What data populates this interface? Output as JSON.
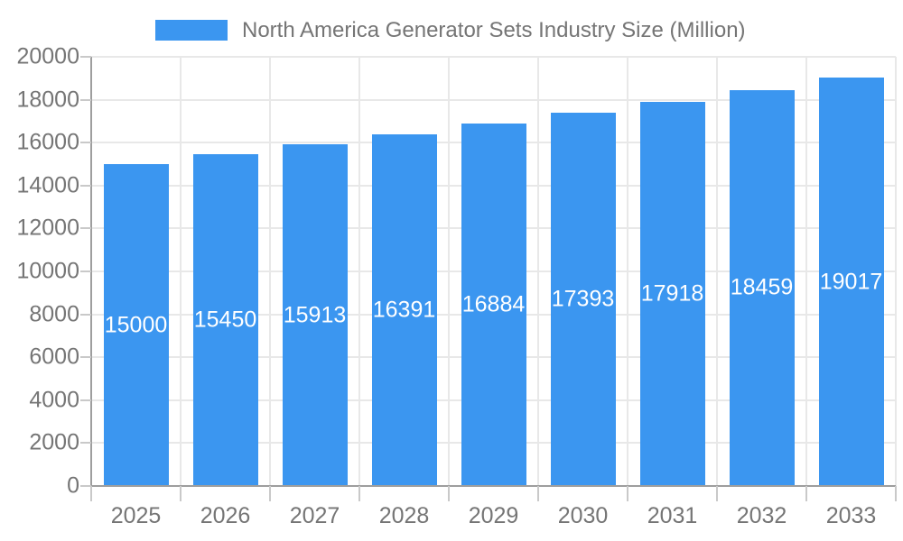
{
  "legend": {
    "label": "North America Generator Sets Industry Size (Million)"
  },
  "colors": {
    "bar": "#3B96F0",
    "axis_line": "#9E9E9E",
    "gridline": "#E8E8E8",
    "tick": "#C9C9C9",
    "axis_label": "#757575",
    "value_label": "#FFFFFF",
    "background": "#FFFFFF"
  },
  "chart_data": {
    "type": "bar",
    "title": "North America Generator Sets Industry Size (Million)",
    "series_name": "North America Generator Sets Industry Size (Million)",
    "categories": [
      "2025",
      "2026",
      "2027",
      "2028",
      "2029",
      "2030",
      "2031",
      "2032",
      "2033"
    ],
    "values": [
      15000,
      15450,
      15913,
      16391,
      16884,
      17393,
      17918,
      18459,
      19017
    ],
    "xlabel": "",
    "ylabel": "",
    "ylim": [
      0,
      20000
    ],
    "ytick_step": 2000,
    "yticks": [
      0,
      2000,
      4000,
      6000,
      8000,
      10000,
      12000,
      14000,
      16000,
      18000,
      20000
    ],
    "grid": true,
    "legend_position": "top",
    "value_labels": "inside-center"
  }
}
